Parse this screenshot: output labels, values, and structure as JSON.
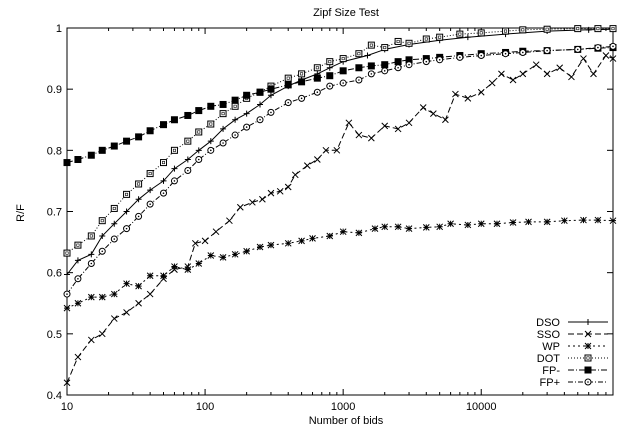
{
  "chart_data": {
    "type": "line",
    "title": "Zipf Size Test",
    "xlabel": "Number of bids",
    "ylabel": "R/F",
    "xscale": "log",
    "xlim": [
      10,
      90000
    ],
    "ylim": [
      0.4,
      1.0
    ],
    "grid": false,
    "legend_position": "bottom-right",
    "x_ticks": [
      10,
      100,
      1000,
      10000
    ],
    "x_tick_labels": [
      "10",
      "100",
      "1000",
      "10000"
    ],
    "y_ticks": [
      0.4,
      0.5,
      0.6,
      0.7,
      0.8,
      0.9,
      1.0
    ],
    "y_tick_labels": [
      "0.4",
      "0.5",
      "0.6",
      "0.7",
      "0.8",
      "0.9",
      "1"
    ],
    "series": [
      {
        "name": "DSO",
        "dash": "",
        "marker": "plus",
        "points": [
          [
            10,
            0.597
          ],
          [
            12,
            0.62
          ],
          [
            15,
            0.63
          ],
          [
            18,
            0.66
          ],
          [
            22,
            0.68
          ],
          [
            27,
            0.7
          ],
          [
            33,
            0.72
          ],
          [
            40,
            0.735
          ],
          [
            50,
            0.75
          ],
          [
            60,
            0.77
          ],
          [
            75,
            0.785
          ],
          [
            90,
            0.8
          ],
          [
            110,
            0.815
          ],
          [
            135,
            0.835
          ],
          [
            165,
            0.85
          ],
          [
            200,
            0.86
          ],
          [
            250,
            0.875
          ],
          [
            300,
            0.89
          ],
          [
            400,
            0.905
          ],
          [
            500,
            0.915
          ],
          [
            650,
            0.925
          ],
          [
            800,
            0.935
          ],
          [
            1000,
            0.945
          ],
          [
            1500,
            0.955
          ],
          [
            2000,
            0.965
          ],
          [
            3000,
            0.973
          ],
          [
            5000,
            0.98
          ],
          [
            8000,
            0.985
          ],
          [
            15000,
            0.99
          ],
          [
            30000,
            0.995
          ],
          [
            60000,
            0.997
          ],
          [
            90000,
            0.998
          ]
        ]
      },
      {
        "name": "SSO",
        "dash": "6,3",
        "marker": "x",
        "points": [
          [
            10,
            0.42
          ],
          [
            12,
            0.462
          ],
          [
            15,
            0.49
          ],
          [
            18,
            0.5
          ],
          [
            22,
            0.525
          ],
          [
            27,
            0.535
          ],
          [
            33,
            0.55
          ],
          [
            40,
            0.565
          ],
          [
            50,
            0.59
          ],
          [
            60,
            0.605
          ],
          [
            75,
            0.61
          ],
          [
            85,
            0.648
          ],
          [
            100,
            0.652
          ],
          [
            120,
            0.667
          ],
          [
            150,
            0.685
          ],
          [
            180,
            0.707
          ],
          [
            220,
            0.715
          ],
          [
            260,
            0.72
          ],
          [
            300,
            0.73
          ],
          [
            350,
            0.733
          ],
          [
            400,
            0.74
          ],
          [
            450,
            0.76
          ],
          [
            550,
            0.775
          ],
          [
            650,
            0.785
          ],
          [
            750,
            0.8
          ],
          [
            900,
            0.8
          ],
          [
            1100,
            0.845
          ],
          [
            1300,
            0.825
          ],
          [
            1600,
            0.82
          ],
          [
            2000,
            0.84
          ],
          [
            2500,
            0.835
          ],
          [
            3000,
            0.845
          ],
          [
            3800,
            0.87
          ],
          [
            4500,
            0.86
          ],
          [
            5500,
            0.85
          ],
          [
            6500,
            0.892
          ],
          [
            8000,
            0.885
          ],
          [
            10000,
            0.895
          ],
          [
            12000,
            0.91
          ],
          [
            14000,
            0.925
          ],
          [
            17000,
            0.915
          ],
          [
            20000,
            0.925
          ],
          [
            25000,
            0.94
          ],
          [
            30000,
            0.925
          ],
          [
            37000,
            0.935
          ],
          [
            45000,
            0.92
          ],
          [
            55000,
            0.95
          ],
          [
            65000,
            0.925
          ],
          [
            80000,
            0.955
          ],
          [
            90000,
            0.95
          ]
        ]
      },
      {
        "name": "WP",
        "dash": "2,3",
        "marker": "star",
        "points": [
          [
            10,
            0.542
          ],
          [
            12,
            0.55
          ],
          [
            15,
            0.56
          ],
          [
            18,
            0.56
          ],
          [
            22,
            0.565
          ],
          [
            27,
            0.582
          ],
          [
            33,
            0.578
          ],
          [
            40,
            0.595
          ],
          [
            50,
            0.595
          ],
          [
            60,
            0.61
          ],
          [
            75,
            0.605
          ],
          [
            90,
            0.615
          ],
          [
            110,
            0.628
          ],
          [
            135,
            0.625
          ],
          [
            165,
            0.63
          ],
          [
            200,
            0.635
          ],
          [
            250,
            0.642
          ],
          [
            300,
            0.645
          ],
          [
            400,
            0.648
          ],
          [
            500,
            0.652
          ],
          [
            600,
            0.656
          ],
          [
            800,
            0.66
          ],
          [
            1000,
            0.667
          ],
          [
            1300,
            0.665
          ],
          [
            1700,
            0.672
          ],
          [
            2000,
            0.675
          ],
          [
            2500,
            0.675
          ],
          [
            3000,
            0.672
          ],
          [
            4000,
            0.674
          ],
          [
            5000,
            0.675
          ],
          [
            6000,
            0.68
          ],
          [
            8000,
            0.678
          ],
          [
            10000,
            0.68
          ],
          [
            13000,
            0.68
          ],
          [
            17000,
            0.682
          ],
          [
            22000,
            0.683
          ],
          [
            30000,
            0.683
          ],
          [
            40000,
            0.685
          ],
          [
            55000,
            0.686
          ],
          [
            70000,
            0.686
          ],
          [
            90000,
            0.685
          ]
        ]
      },
      {
        "name": "DOT",
        "dash": "1,2",
        "marker": "open-square",
        "points": [
          [
            10,
            0.632
          ],
          [
            12,
            0.645
          ],
          [
            15,
            0.66
          ],
          [
            18,
            0.685
          ],
          [
            22,
            0.705
          ],
          [
            27,
            0.728
          ],
          [
            33,
            0.745
          ],
          [
            40,
            0.762
          ],
          [
            50,
            0.78
          ],
          [
            60,
            0.8
          ],
          [
            75,
            0.815
          ],
          [
            90,
            0.83
          ],
          [
            110,
            0.843
          ],
          [
            135,
            0.86
          ],
          [
            165,
            0.872
          ],
          [
            200,
            0.885
          ],
          [
            250,
            0.895
          ],
          [
            300,
            0.905
          ],
          [
            400,
            0.918
          ],
          [
            500,
            0.925
          ],
          [
            650,
            0.935
          ],
          [
            800,
            0.945
          ],
          [
            1000,
            0.95
          ],
          [
            1300,
            0.958
          ],
          [
            1600,
            0.972
          ],
          [
            2000,
            0.968
          ],
          [
            2500,
            0.978
          ],
          [
            3000,
            0.975
          ],
          [
            4000,
            0.982
          ],
          [
            5000,
            0.985
          ],
          [
            7000,
            0.99
          ],
          [
            10000,
            0.992
          ],
          [
            15000,
            0.995
          ],
          [
            20000,
            0.997
          ],
          [
            30000,
            0.998
          ],
          [
            50000,
            0.999
          ],
          [
            70000,
            0.999
          ],
          [
            90000,
            0.999
          ]
        ]
      },
      {
        "name": "FP-",
        "dash": "6,2,1,2",
        "marker": "filled-square",
        "points": [
          [
            10,
            0.78
          ],
          [
            12,
            0.785
          ],
          [
            15,
            0.792
          ],
          [
            18,
            0.8
          ],
          [
            22,
            0.807
          ],
          [
            27,
            0.815
          ],
          [
            33,
            0.822
          ],
          [
            40,
            0.832
          ],
          [
            50,
            0.842
          ],
          [
            60,
            0.85
          ],
          [
            75,
            0.857
          ],
          [
            90,
            0.865
          ],
          [
            110,
            0.872
          ],
          [
            135,
            0.875
          ],
          [
            165,
            0.882
          ],
          [
            200,
            0.89
          ],
          [
            250,
            0.895
          ],
          [
            300,
            0.9
          ],
          [
            400,
            0.907
          ],
          [
            500,
            0.912
          ],
          [
            650,
            0.918
          ],
          [
            800,
            0.922
          ],
          [
            1000,
            0.93
          ],
          [
            1300,
            0.935
          ],
          [
            1600,
            0.938
          ],
          [
            2000,
            0.94
          ],
          [
            2500,
            0.945
          ],
          [
            3000,
            0.948
          ],
          [
            4000,
            0.95
          ],
          [
            5000,
            0.952
          ],
          [
            7000,
            0.955
          ],
          [
            10000,
            0.958
          ],
          [
            15000,
            0.96
          ],
          [
            20000,
            0.962
          ],
          [
            30000,
            0.963
          ],
          [
            50000,
            0.965
          ],
          [
            70000,
            0.967
          ],
          [
            90000,
            0.968
          ]
        ]
      },
      {
        "name": "FP+",
        "dash": "5,2,1,2",
        "marker": "open-circle",
        "points": [
          [
            10,
            0.565
          ],
          [
            12,
            0.59
          ],
          [
            15,
            0.615
          ],
          [
            18,
            0.635
          ],
          [
            22,
            0.655
          ],
          [
            27,
            0.672
          ],
          [
            33,
            0.692
          ],
          [
            40,
            0.712
          ],
          [
            50,
            0.73
          ],
          [
            60,
            0.75
          ],
          [
            75,
            0.767
          ],
          [
            90,
            0.785
          ],
          [
            110,
            0.8
          ],
          [
            135,
            0.812
          ],
          [
            165,
            0.825
          ],
          [
            200,
            0.838
          ],
          [
            250,
            0.85
          ],
          [
            300,
            0.862
          ],
          [
            400,
            0.878
          ],
          [
            500,
            0.885
          ],
          [
            650,
            0.895
          ],
          [
            800,
            0.905
          ],
          [
            1000,
            0.91
          ],
          [
            1300,
            0.915
          ],
          [
            1600,
            0.925
          ],
          [
            2000,
            0.93
          ],
          [
            2500,
            0.935
          ],
          [
            3000,
            0.94
          ],
          [
            4000,
            0.945
          ],
          [
            5000,
            0.948
          ],
          [
            7000,
            0.952
          ],
          [
            10000,
            0.955
          ],
          [
            15000,
            0.958
          ],
          [
            20000,
            0.96
          ],
          [
            30000,
            0.963
          ],
          [
            50000,
            0.965
          ],
          [
            70000,
            0.968
          ],
          [
            90000,
            0.97
          ]
        ]
      }
    ]
  }
}
